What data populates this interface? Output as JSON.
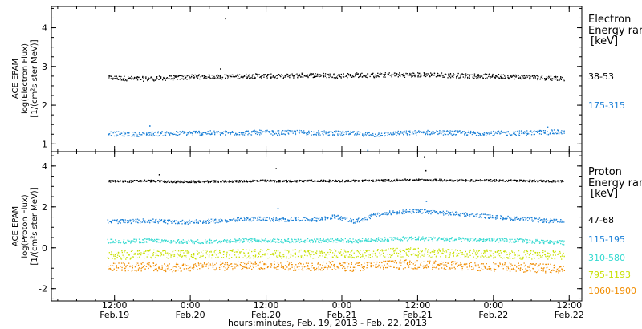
{
  "xaxis": {
    "title": "hours:minutes, Feb. 19, 2013 - Feb. 22, 2013",
    "ticks": [
      {
        "t": 12,
        "time": "12:00",
        "date": "Feb.19"
      },
      {
        "t": 24,
        "time": "0:00",
        "date": "Feb.20"
      },
      {
        "t": 36,
        "time": "12:00",
        "date": "Feb.20"
      },
      {
        "t": 48,
        "time": "0:00",
        "date": "Feb.21"
      },
      {
        "t": 60,
        "time": "12:00",
        "date": "Feb.21"
      },
      {
        "t": 72,
        "time": "0:00",
        "date": "Feb.22"
      },
      {
        "t": 84,
        "time": "12:00",
        "date": "Feb.22"
      }
    ]
  },
  "legend_electron": {
    "title_line1": "Electron",
    "title_line2": "Energy ran",
    "unit": "[keV]",
    "items": [
      {
        "label": "38-53",
        "color": "#000000"
      },
      {
        "label": "175-315",
        "color": "#1a7fd6"
      }
    ]
  },
  "legend_proton": {
    "title_line1": "Proton",
    "title_line2": "Energy ran",
    "unit": "[keV]",
    "items": [
      {
        "label": "47-68",
        "color": "#000000"
      },
      {
        "label": "115-195",
        "color": "#1a7fd6"
      },
      {
        "label": "310-580",
        "color": "#33d9d0"
      },
      {
        "label": "795-1193",
        "color": "#c8e000"
      },
      {
        "label": "1060-1900",
        "color": "#f08c00"
      }
    ]
  },
  "chart_data": [
    {
      "type": "scatter",
      "panel": "electron",
      "ylabel_line1": "ACE EPAM",
      "ylabel_line2": "log(Electron Flux)",
      "ylabel_line3": "[1/(cm²s ster MeV)]",
      "yticks": [
        1,
        2,
        3,
        4
      ],
      "ylim": [
        0.8,
        4.55
      ],
      "xlim": [
        2,
        86
      ],
      "x_unit": "hours since Feb. 19, 2013 00:00",
      "series": [
        {
          "name": "38-53",
          "color": "#000000",
          "x": [
            11,
            14,
            17,
            20,
            23,
            26,
            29,
            32,
            35,
            38,
            41,
            44,
            47,
            50,
            53,
            56,
            59,
            62,
            65,
            68,
            71,
            74,
            77,
            80,
            83
          ],
          "y": [
            2.72,
            2.7,
            2.69,
            2.71,
            2.73,
            2.75,
            2.74,
            2.76,
            2.77,
            2.75,
            2.78,
            2.79,
            2.77,
            2.79,
            2.78,
            2.8,
            2.79,
            2.8,
            2.78,
            2.77,
            2.76,
            2.75,
            2.74,
            2.72,
            2.7
          ],
          "outliers": [
            {
              "x": 29.5,
              "y": 4.25
            },
            {
              "x": 28.7,
              "y": 2.95
            }
          ]
        },
        {
          "name": "175-315",
          "color": "#1a7fd6",
          "x": [
            11,
            14,
            17,
            20,
            23,
            26,
            29,
            32,
            35,
            38,
            41,
            44,
            47,
            50,
            53,
            56,
            59,
            62,
            65,
            68,
            71,
            74,
            77,
            80,
            83
          ],
          "y": [
            1.28,
            1.26,
            1.27,
            1.28,
            1.29,
            1.3,
            1.29,
            1.3,
            1.31,
            1.3,
            1.31,
            1.3,
            1.29,
            1.28,
            1.25,
            1.28,
            1.3,
            1.31,
            1.3,
            1.29,
            1.28,
            1.29,
            1.3,
            1.31,
            1.32
          ],
          "outliers": [
            {
              "x": 17.5,
              "y": 1.48
            },
            {
              "x": 52.0,
              "y": 0.85
            },
            {
              "x": 80.5,
              "y": 1.45
            }
          ]
        }
      ]
    },
    {
      "type": "scatter",
      "panel": "proton",
      "ylabel_line1": "ACE EPAM",
      "ylabel_line2": "log(Proton Flux)",
      "ylabel_line3": "[1/(cm²s ster MeV)]",
      "yticks": [
        -2,
        0,
        2,
        4
      ],
      "ylim": [
        -2.6,
        4.7
      ],
      "xlim": [
        2,
        86
      ],
      "x_unit": "hours since Feb. 19, 2013 00:00",
      "series": [
        {
          "name": "47-68",
          "color": "#000000",
          "x": [
            11,
            14,
            17,
            20,
            23,
            26,
            29,
            32,
            35,
            38,
            41,
            44,
            47,
            50,
            53,
            56,
            59,
            62,
            65,
            68,
            71,
            74,
            77,
            80,
            83
          ],
          "y": [
            3.28,
            3.27,
            3.3,
            3.26,
            3.25,
            3.26,
            3.27,
            3.28,
            3.3,
            3.28,
            3.29,
            3.3,
            3.29,
            3.3,
            3.31,
            3.32,
            3.35,
            3.34,
            3.33,
            3.32,
            3.32,
            3.31,
            3.3,
            3.29,
            3.28
          ],
          "outliers": [
            {
              "x": 19.0,
              "y": 3.6
            },
            {
              "x": 37.5,
              "y": 3.9
            },
            {
              "x": 61.0,
              "y": 4.45
            },
            {
              "x": 61.2,
              "y": 3.8
            }
          ]
        },
        {
          "name": "115-195",
          "color": "#1a7fd6",
          "x": [
            11,
            14,
            17,
            20,
            23,
            26,
            29,
            32,
            35,
            38,
            41,
            44,
            47,
            50,
            53,
            56,
            59,
            62,
            65,
            68,
            71,
            74,
            77,
            80,
            83
          ],
          "y": [
            1.32,
            1.3,
            1.35,
            1.3,
            1.28,
            1.3,
            1.35,
            1.4,
            1.45,
            1.38,
            1.42,
            1.4,
            1.55,
            1.3,
            1.6,
            1.75,
            1.8,
            1.78,
            1.7,
            1.65,
            1.55,
            1.48,
            1.42,
            1.35,
            1.3
          ],
          "outliers": [
            {
              "x": 37.8,
              "y": 1.95
            },
            {
              "x": 61.3,
              "y": 2.3
            }
          ]
        },
        {
          "name": "310-580",
          "color": "#33d9d0",
          "x": [
            11,
            14,
            17,
            20,
            23,
            26,
            29,
            32,
            35,
            38,
            41,
            44,
            47,
            50,
            53,
            56,
            59,
            62,
            65,
            68,
            71,
            74,
            77,
            80,
            83
          ],
          "y": [
            0.35,
            0.33,
            0.38,
            0.34,
            0.32,
            0.33,
            0.35,
            0.38,
            0.4,
            0.36,
            0.38,
            0.37,
            0.4,
            0.35,
            0.42,
            0.45,
            0.48,
            0.47,
            0.44,
            0.42,
            0.4,
            0.38,
            0.35,
            0.32,
            0.28
          ],
          "outliers": []
        },
        {
          "name": "795-1193",
          "color": "#c8e000",
          "x": [
            11,
            14,
            17,
            20,
            23,
            26,
            29,
            32,
            35,
            38,
            41,
            44,
            47,
            50,
            53,
            56,
            59,
            62,
            65,
            68,
            71,
            74,
            77,
            80,
            83
          ],
          "y": [
            -0.3,
            -0.32,
            -0.28,
            -0.31,
            -0.33,
            -0.3,
            -0.29,
            -0.27,
            -0.25,
            -0.28,
            -0.27,
            -0.28,
            -0.26,
            -0.3,
            -0.25,
            -0.22,
            -0.2,
            -0.22,
            -0.25,
            -0.27,
            -0.28,
            -0.3,
            -0.32,
            -0.33,
            -0.35
          ],
          "outliers": []
        },
        {
          "name": "1060-1900",
          "color": "#f08c00",
          "x": [
            11,
            14,
            17,
            20,
            23,
            26,
            29,
            32,
            35,
            38,
            41,
            44,
            47,
            50,
            53,
            56,
            59,
            62,
            65,
            68,
            71,
            74,
            77,
            80,
            83
          ],
          "y": [
            -0.9,
            -0.92,
            -0.88,
            -0.93,
            -0.95,
            -0.9,
            -0.88,
            -0.87,
            -0.85,
            -0.88,
            -0.87,
            -0.88,
            -0.86,
            -0.92,
            -0.84,
            -0.8,
            -0.78,
            -0.82,
            -0.85,
            -0.88,
            -0.9,
            -0.92,
            -0.95,
            -0.98,
            -1.0
          ],
          "outliers": []
        }
      ]
    }
  ]
}
